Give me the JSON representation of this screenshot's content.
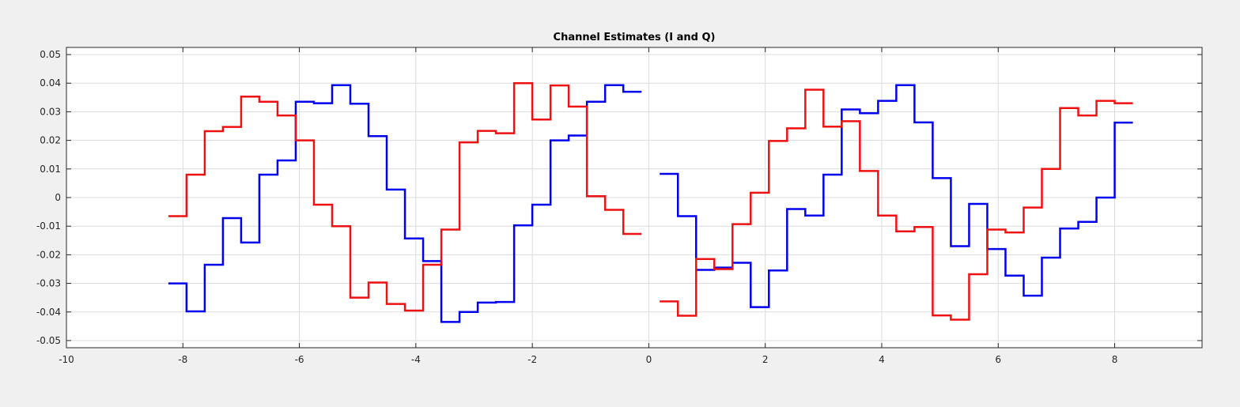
{
  "chart_data": {
    "type": "line",
    "step": true,
    "title": "Channel Estimates (I and Q)",
    "xlabel": "",
    "ylabel": "",
    "xlim": [
      -10,
      9.5
    ],
    "ylim": [
      -0.0525,
      0.0525
    ],
    "xticks": [
      -10,
      -8,
      -6,
      -4,
      -2,
      0,
      2,
      4,
      6,
      8
    ],
    "xtick_labels": [
      "-10",
      "-8",
      "-6",
      "-4",
      "-2",
      "0",
      "2",
      "4",
      "6",
      "8"
    ],
    "yticks": [
      0.05,
      0.04,
      0.03,
      0.02,
      0.01,
      0,
      -0.01,
      -0.02,
      -0.03,
      -0.04,
      -0.05
    ],
    "ytick_labels": [
      "0.05",
      "0.04",
      "0.03",
      "0.02",
      "0.01",
      "0",
      "-0.01",
      "-0.02",
      "-0.03",
      "-0.04",
      "-0.05"
    ],
    "grid": true,
    "legend": false,
    "series": [
      {
        "color": "#0000ee",
        "segments": [
          {
            "x0": -8.25,
            "dx": 0.3125,
            "values": [
              -0.03,
              -0.0398,
              -0.0235,
              -0.0072,
              -0.0157,
              0.008,
              0.013,
              0.0335,
              0.033,
              0.0393,
              0.0328,
              0.0215,
              0.0028,
              -0.0143,
              -0.0222,
              -0.0435,
              -0.04,
              -0.0367,
              -0.0365,
              -0.0097,
              -0.0025,
              0.02,
              0.0217,
              0.0335,
              0.0393,
              0.037
            ]
          },
          {
            "x0": 0.1875,
            "dx": 0.3125,
            "values": [
              0.0083,
              -0.0065,
              -0.0253,
              -0.0245,
              -0.0228,
              -0.0383,
              -0.0255,
              -0.004,
              -0.0063,
              0.008,
              0.0308,
              0.0295,
              0.0338,
              0.0393,
              0.0263,
              0.0068,
              -0.017,
              -0.0022,
              -0.018,
              -0.0273,
              -0.0343,
              -0.021,
              -0.0108,
              -0.0085,
              0.0,
              0.0262
            ]
          }
        ]
      },
      {
        "color": "#ee1111",
        "segments": [
          {
            "x0": -8.25,
            "dx": 0.3125,
            "values": [
              -0.0065,
              0.008,
              0.0232,
              0.0247,
              0.0353,
              0.0335,
              0.0287,
              0.02,
              -0.0025,
              -0.01,
              -0.035,
              -0.0297,
              -0.0372,
              -0.0395,
              -0.0235,
              -0.0112,
              0.0193,
              0.0233,
              0.0225,
              0.04,
              0.0273,
              0.0392,
              0.0318,
              0.0005,
              -0.0043,
              -0.0127
            ]
          },
          {
            "x0": 0.1875,
            "dx": 0.3125,
            "values": [
              -0.0363,
              -0.0413,
              -0.0215,
              -0.025,
              -0.0093,
              0.0017,
              0.0198,
              0.0242,
              0.0377,
              0.0248,
              0.0267,
              0.0093,
              -0.0063,
              -0.0118,
              -0.0103,
              -0.0412,
              -0.0427,
              -0.0268,
              -0.0112,
              -0.0122,
              -0.0035,
              0.01,
              0.0313,
              0.0287,
              0.0338,
              0.033
            ]
          }
        ]
      }
    ]
  }
}
